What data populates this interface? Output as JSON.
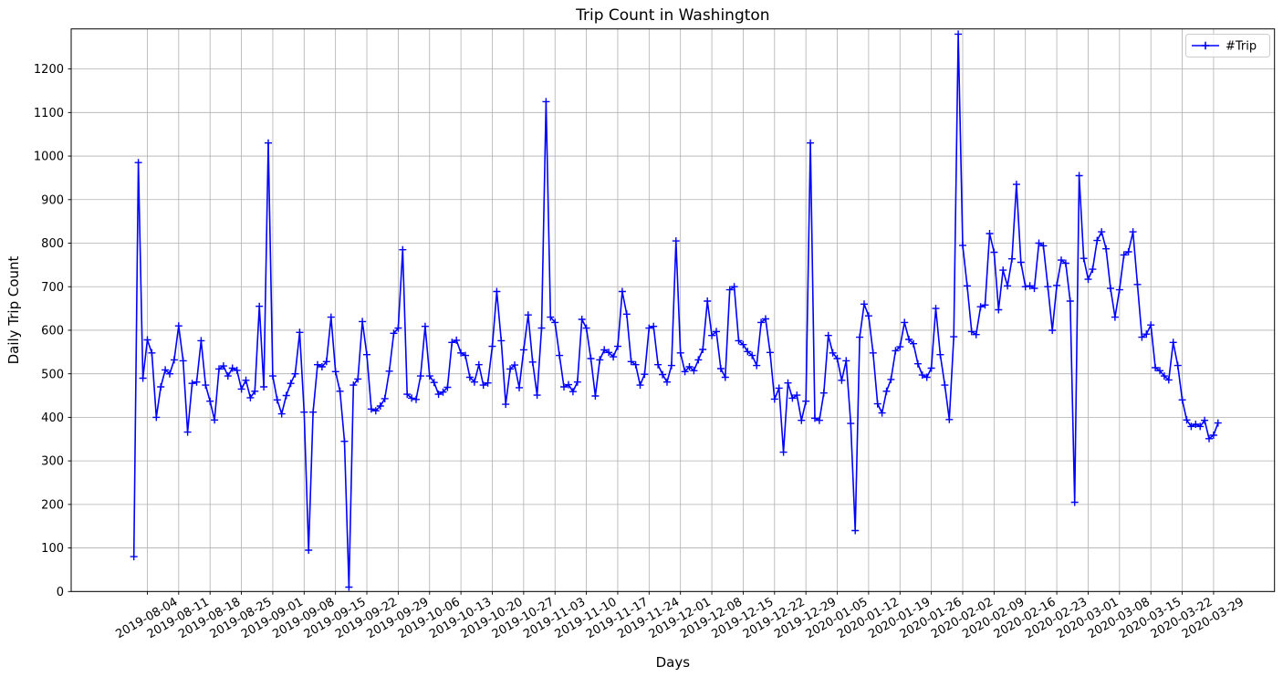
{
  "figure": {
    "title": "Trip Count in Washington",
    "xlabel": "Days",
    "ylabel": "Daily Trip Count"
  },
  "legend": {
    "label": "#Trip"
  },
  "chart_data": {
    "type": "line",
    "title": "Trip Count in Washington",
    "xlabel": "Days",
    "ylabel": "Daily Trip Count",
    "legend_entries": [
      "#Trip"
    ],
    "legend_position": "upper right",
    "grid": true,
    "line_color": "#0000FF",
    "marker": "+",
    "x_start_date": "2019-08-01",
    "x_frequency": "daily",
    "x_tick_first_day_index": 3,
    "x_tick_interval_days": 7,
    "x_tick_labels": [
      "2019-08-04",
      "2019-08-11",
      "2019-08-18",
      "2019-08-25",
      "2019-09-01",
      "2019-09-08",
      "2019-09-15",
      "2019-09-22",
      "2019-09-29",
      "2019-10-06",
      "2019-10-13",
      "2019-10-20",
      "2019-10-27",
      "2019-11-03",
      "2019-11-10",
      "2019-11-17",
      "2019-11-24",
      "2019-12-01",
      "2019-12-08",
      "2019-12-15",
      "2019-12-22",
      "2019-12-29",
      "2020-01-05",
      "2020-01-12",
      "2020-01-19",
      "2020-01-26",
      "2020-02-02",
      "2020-02-09",
      "2020-02-16",
      "2020-02-23",
      "2020-03-01",
      "2020-03-08",
      "2020-03-15",
      "2020-03-22",
      "2020-03-29"
    ],
    "y_ticks": [
      0,
      100,
      200,
      300,
      400,
      500,
      600,
      700,
      800,
      900,
      1000,
      1100,
      1200
    ],
    "ylim": [
      0,
      1292
    ],
    "xlim_days": [
      -14,
      254.6
    ],
    "series": [
      {
        "name": "#Trip",
        "values": [
          80,
          985,
          490,
          578,
          548,
          400,
          470,
          509,
          500,
          532,
          610,
          530,
          366,
          478,
          481,
          576,
          474,
          437,
          394,
          511,
          518,
          495,
          513,
          508,
          465,
          485,
          445,
          460,
          655,
          470,
          1030,
          495,
          440,
          408,
          450,
          478,
          500,
          595,
          412,
          95,
          412,
          521,
          516,
          528,
          630,
          505,
          460,
          345,
          10,
          474,
          488,
          620,
          544,
          419,
          415,
          426,
          443,
          506,
          593,
          605,
          785,
          453,
          444,
          441,
          495,
          609,
          495,
          480,
          453,
          458,
          469,
          572,
          577,
          548,
          542,
          492,
          481,
          521,
          474,
          479,
          563,
          689,
          576,
          430,
          511,
          520,
          468,
          555,
          635,
          527,
          451,
          605,
          1125,
          630,
          618,
          542,
          470,
          475,
          459,
          481,
          625,
          605,
          535,
          449,
          532,
          555,
          549,
          539,
          563,
          689,
          637,
          528,
          521,
          474,
          499,
          605,
          609,
          521,
          498,
          481,
          519,
          805,
          548,
          505,
          516,
          507,
          532,
          556,
          667,
          588,
          597,
          512,
          492,
          693,
          700,
          576,
          567,
          551,
          542,
          519,
          618,
          626,
          549,
          442,
          467,
          320,
          479,
          444,
          451,
          393,
          437,
          1030,
          398,
          393,
          456,
          588,
          548,
          535,
          485,
          530,
          386,
          140,
          584,
          660,
          633,
          548,
          431,
          410,
          460,
          487,
          553,
          562,
          618,
          579,
          569,
          523,
          497,
          492,
          513,
          650,
          544,
          474,
          395,
          585,
          1280,
          795,
          702,
          597,
          590,
          654,
          658,
          822,
          779,
          647,
          738,
          702,
          764,
          935,
          756,
          700,
          702,
          696,
          800,
          794,
          700,
          600,
          703,
          761,
          754,
          667,
          205,
          955,
          765,
          717,
          740,
          806,
          826,
          787,
          696,
          630,
          693,
          773,
          780,
          826,
          705,
          584,
          591,
          612,
          514,
          507,
          495,
          486,
          572,
          519,
          440,
          394,
          379,
          384,
          379,
          393,
          351,
          359,
          387
        ]
      }
    ]
  }
}
